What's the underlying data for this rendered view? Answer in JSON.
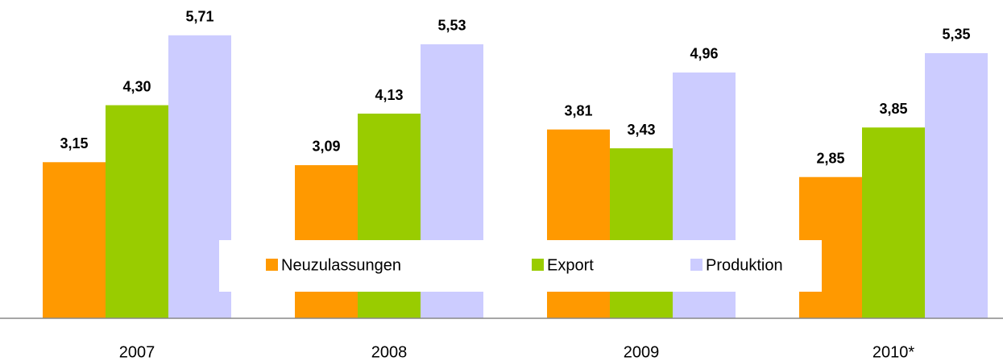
{
  "chart_data": {
    "type": "bar",
    "categories": [
      "2007",
      "2008",
      "2009",
      "2010*"
    ],
    "series": [
      {
        "name": "Neuzulassungen",
        "color": "#ff9900",
        "values": [
          3.15,
          3.09,
          3.81,
          2.85
        ],
        "value_labels": [
          "3,15",
          "3,09",
          "3,81",
          "2,85"
        ]
      },
      {
        "name": "Export",
        "color": "#99cc00",
        "values": [
          4.3,
          4.13,
          3.43,
          3.85
        ],
        "value_labels": [
          "4,30",
          "4,13",
          "3,43",
          "3,85"
        ]
      },
      {
        "name": "Produktion",
        "color": "#ccccff",
        "values": [
          5.71,
          5.53,
          4.96,
          5.35
        ],
        "value_labels": [
          "5,71",
          "5,53",
          "4,96",
          "5,35"
        ]
      }
    ],
    "ylim": [
      0,
      6
    ],
    "legend": "bottom",
    "grid": false
  }
}
